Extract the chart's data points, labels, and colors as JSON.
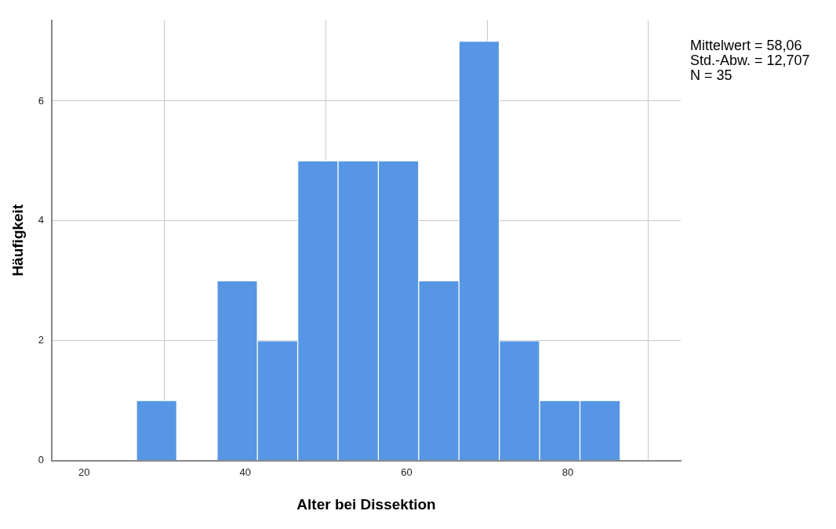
{
  "chart_data": {
    "type": "histogram",
    "xlabel": "Alter bei Dissektion",
    "ylabel": "Häufigkeit",
    "bins": [
      26.5,
      31.5,
      36.5,
      41.5,
      46.5,
      51.5,
      56.5,
      61.5,
      66.5,
      71.5,
      76.5,
      81.5,
      86.5
    ],
    "values": [
      1,
      0,
      3,
      2,
      5,
      5,
      5,
      3,
      7,
      2,
      1,
      1
    ],
    "color": "#5696e4",
    "xlim": [
      16,
      94
    ],
    "xticks": [
      20,
      40,
      60,
      80
    ],
    "ylim": [
      0,
      7.35
    ],
    "yticks": [
      0,
      2,
      4,
      6
    ],
    "grid": true,
    "legend": false,
    "annotations": [
      "Mittelwert = 58,06",
      "Std.-Abw. = 12,707",
      "N = 35"
    ]
  }
}
